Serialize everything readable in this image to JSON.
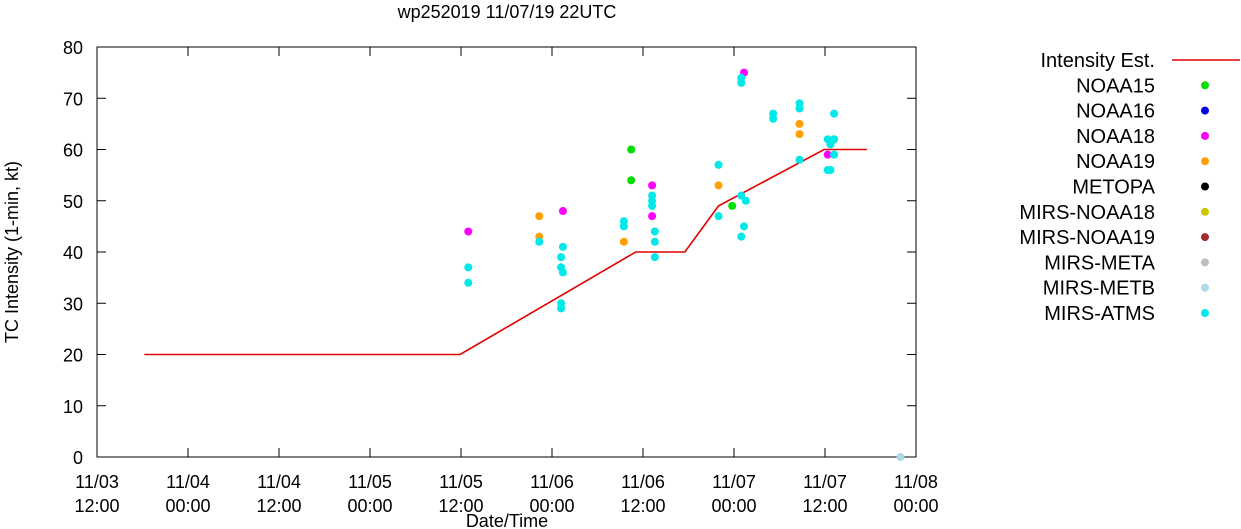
{
  "chart_data": {
    "type": "scatter",
    "title": "wp252019 11/07/19 22UTC",
    "xlabel": "Date/Time",
    "ylabel": "TC Intensity (1-min, kt)",
    "ylim": [
      0,
      80
    ],
    "yticks": [
      0,
      10,
      20,
      30,
      40,
      50,
      60,
      70,
      80
    ],
    "xlim": [
      0,
      90
    ],
    "xticks": [
      {
        "x": 0,
        "line1": "11/03",
        "line2": "12:00"
      },
      {
        "x": 10,
        "line1": "11/04",
        "line2": "00:00"
      },
      {
        "x": 20,
        "line1": "11/04",
        "line2": "12:00"
      },
      {
        "x": 30,
        "line1": "11/05",
        "line2": "00:00"
      },
      {
        "x": 40,
        "line1": "11/05",
        "line2": "12:00"
      },
      {
        "x": 50,
        "line1": "11/06",
        "line2": "00:00"
      },
      {
        "x": 60,
        "line1": "11/06",
        "line2": "12:00"
      },
      {
        "x": 70,
        "line1": "11/07",
        "line2": "00:00"
      },
      {
        "x": 80,
        "line1": "11/07",
        "line2": "12:00"
      },
      {
        "x": 90,
        "line1": "11/08",
        "line2": "00:00"
      }
    ],
    "grid": false,
    "legend_position": "right",
    "intensity_line": {
      "name": "Intensity Est.",
      "color": "#e00000",
      "x": [
        5.2,
        39.9,
        59.2,
        64.6,
        68.3,
        79.9,
        84.6
      ],
      "y": [
        20,
        20,
        40,
        40,
        49,
        60,
        60
      ]
    },
    "series": [
      {
        "name": "NOAA15",
        "color": "#00e000",
        "points": [
          [
            58.7,
            60
          ],
          [
            58.7,
            54
          ],
          [
            69.8,
            49
          ]
        ]
      },
      {
        "name": "NOAA16",
        "color": "#0000e0",
        "points": []
      },
      {
        "name": "NOAA18",
        "color": "#ff00ff",
        "points": [
          [
            40.8,
            44
          ],
          [
            51.2,
            48
          ],
          [
            61.0,
            53
          ],
          [
            61.0,
            47
          ],
          [
            71.1,
            75
          ],
          [
            80.3,
            59
          ]
        ]
      },
      {
        "name": "NOAA19",
        "color": "#ffa000",
        "points": [
          [
            48.6,
            47
          ],
          [
            48.6,
            43
          ],
          [
            57.9,
            42
          ],
          [
            68.3,
            53
          ],
          [
            77.2,
            65
          ],
          [
            77.2,
            63
          ]
        ]
      },
      {
        "name": "METOPA",
        "color": "#000000",
        "points": []
      },
      {
        "name": "MIRS-NOAA18",
        "color": "#c8c800",
        "points": []
      },
      {
        "name": "MIRS-NOAA19",
        "color": "#a52a2a",
        "points": []
      },
      {
        "name": "MIRS-META",
        "color": "#bebebe",
        "points": []
      },
      {
        "name": "MIRS-METB",
        "color": "#add8e6",
        "points": [
          [
            88.3,
            0
          ]
        ]
      },
      {
        "name": "MIRS-ATMS",
        "color": "#00e8e8",
        "points": [
          [
            40.8,
            37
          ],
          [
            40.8,
            34
          ],
          [
            48.6,
            42
          ],
          [
            51.0,
            39
          ],
          [
            51.2,
            41
          ],
          [
            51.0,
            37
          ],
          [
            51.2,
            36
          ],
          [
            51.0,
            30
          ],
          [
            51.0,
            29
          ],
          [
            57.9,
            46
          ],
          [
            57.9,
            45
          ],
          [
            61.0,
            51
          ],
          [
            61.0,
            50
          ],
          [
            61.0,
            49
          ],
          [
            61.3,
            44
          ],
          [
            61.3,
            42
          ],
          [
            61.3,
            39
          ],
          [
            68.3,
            57
          ],
          [
            68.3,
            47
          ],
          [
            70.8,
            74
          ],
          [
            70.8,
            73
          ],
          [
            70.8,
            51
          ],
          [
            70.8,
            43
          ],
          [
            71.3,
            50
          ],
          [
            71.1,
            45
          ],
          [
            74.3,
            67
          ],
          [
            74.3,
            66
          ],
          [
            77.2,
            69
          ],
          [
            77.2,
            68
          ],
          [
            77.2,
            58
          ],
          [
            80.3,
            62
          ],
          [
            80.6,
            61
          ],
          [
            80.3,
            56
          ],
          [
            80.6,
            56
          ],
          [
            81.0,
            62
          ],
          [
            81.0,
            59
          ],
          [
            81.0,
            67
          ]
        ]
      }
    ]
  }
}
